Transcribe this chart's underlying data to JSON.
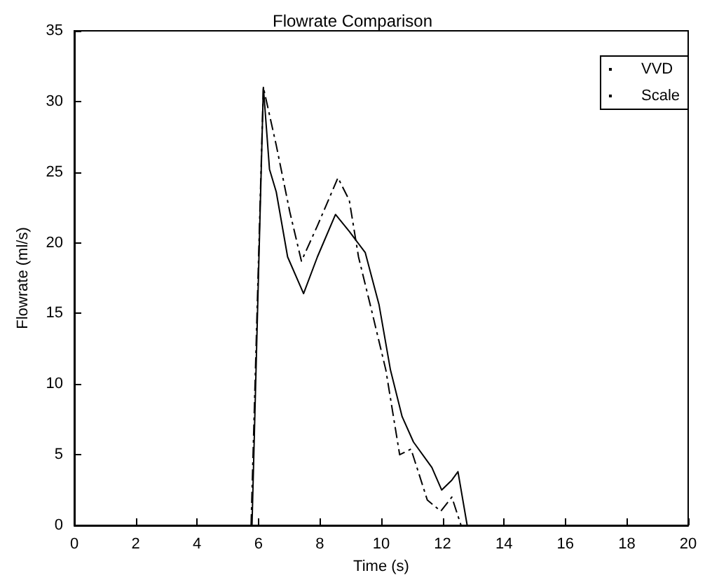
{
  "chart_data": {
    "type": "line",
    "title": "Flowrate Comparison",
    "xlabel": "Time (s)",
    "ylabel": "Flowrate (ml/s)",
    "xlim": [
      0,
      20
    ],
    "xticks": [
      0,
      2,
      4,
      6,
      8,
      10,
      12,
      14,
      16,
      18,
      20
    ],
    "ylim": [
      0,
      35
    ],
    "yticks": [
      0,
      5,
      10,
      15,
      20,
      25,
      30,
      35
    ],
    "grid": false,
    "legend": "top right",
    "marker": "none",
    "series": [
      {
        "name": "VVD",
        "color": "#000000",
        "line_style": "solid",
        "x": [
          5.79,
          6.16,
          6.36,
          6.58,
          6.95,
          7.47,
          7.92,
          8.51,
          8.96,
          9.48,
          9.93,
          10.3,
          10.68,
          11.05,
          11.65,
          11.97,
          12.3,
          12.5,
          12.8
        ],
        "values": [
          0,
          31,
          25.2,
          23.6,
          19,
          16.4,
          19,
          22,
          20.8,
          19.3,
          15.6,
          11,
          7.7,
          5.9,
          4.1,
          2.5,
          3.2,
          3.8,
          0
        ]
      },
      {
        "name": "Scale",
        "color": "#000000",
        "line_style": "dashdot",
        "x": [
          5.76,
          6.16,
          6.58,
          7.02,
          7.4,
          7.92,
          8.59,
          8.96,
          9.26,
          9.71,
          10.15,
          10.6,
          10.97,
          11.5,
          11.94,
          12.3,
          12.6
        ],
        "values": [
          0,
          31,
          26.9,
          22.2,
          18.7,
          21.2,
          24.6,
          23,
          19,
          15,
          11,
          5,
          5.4,
          1.8,
          1,
          2,
          0
        ]
      }
    ]
  }
}
